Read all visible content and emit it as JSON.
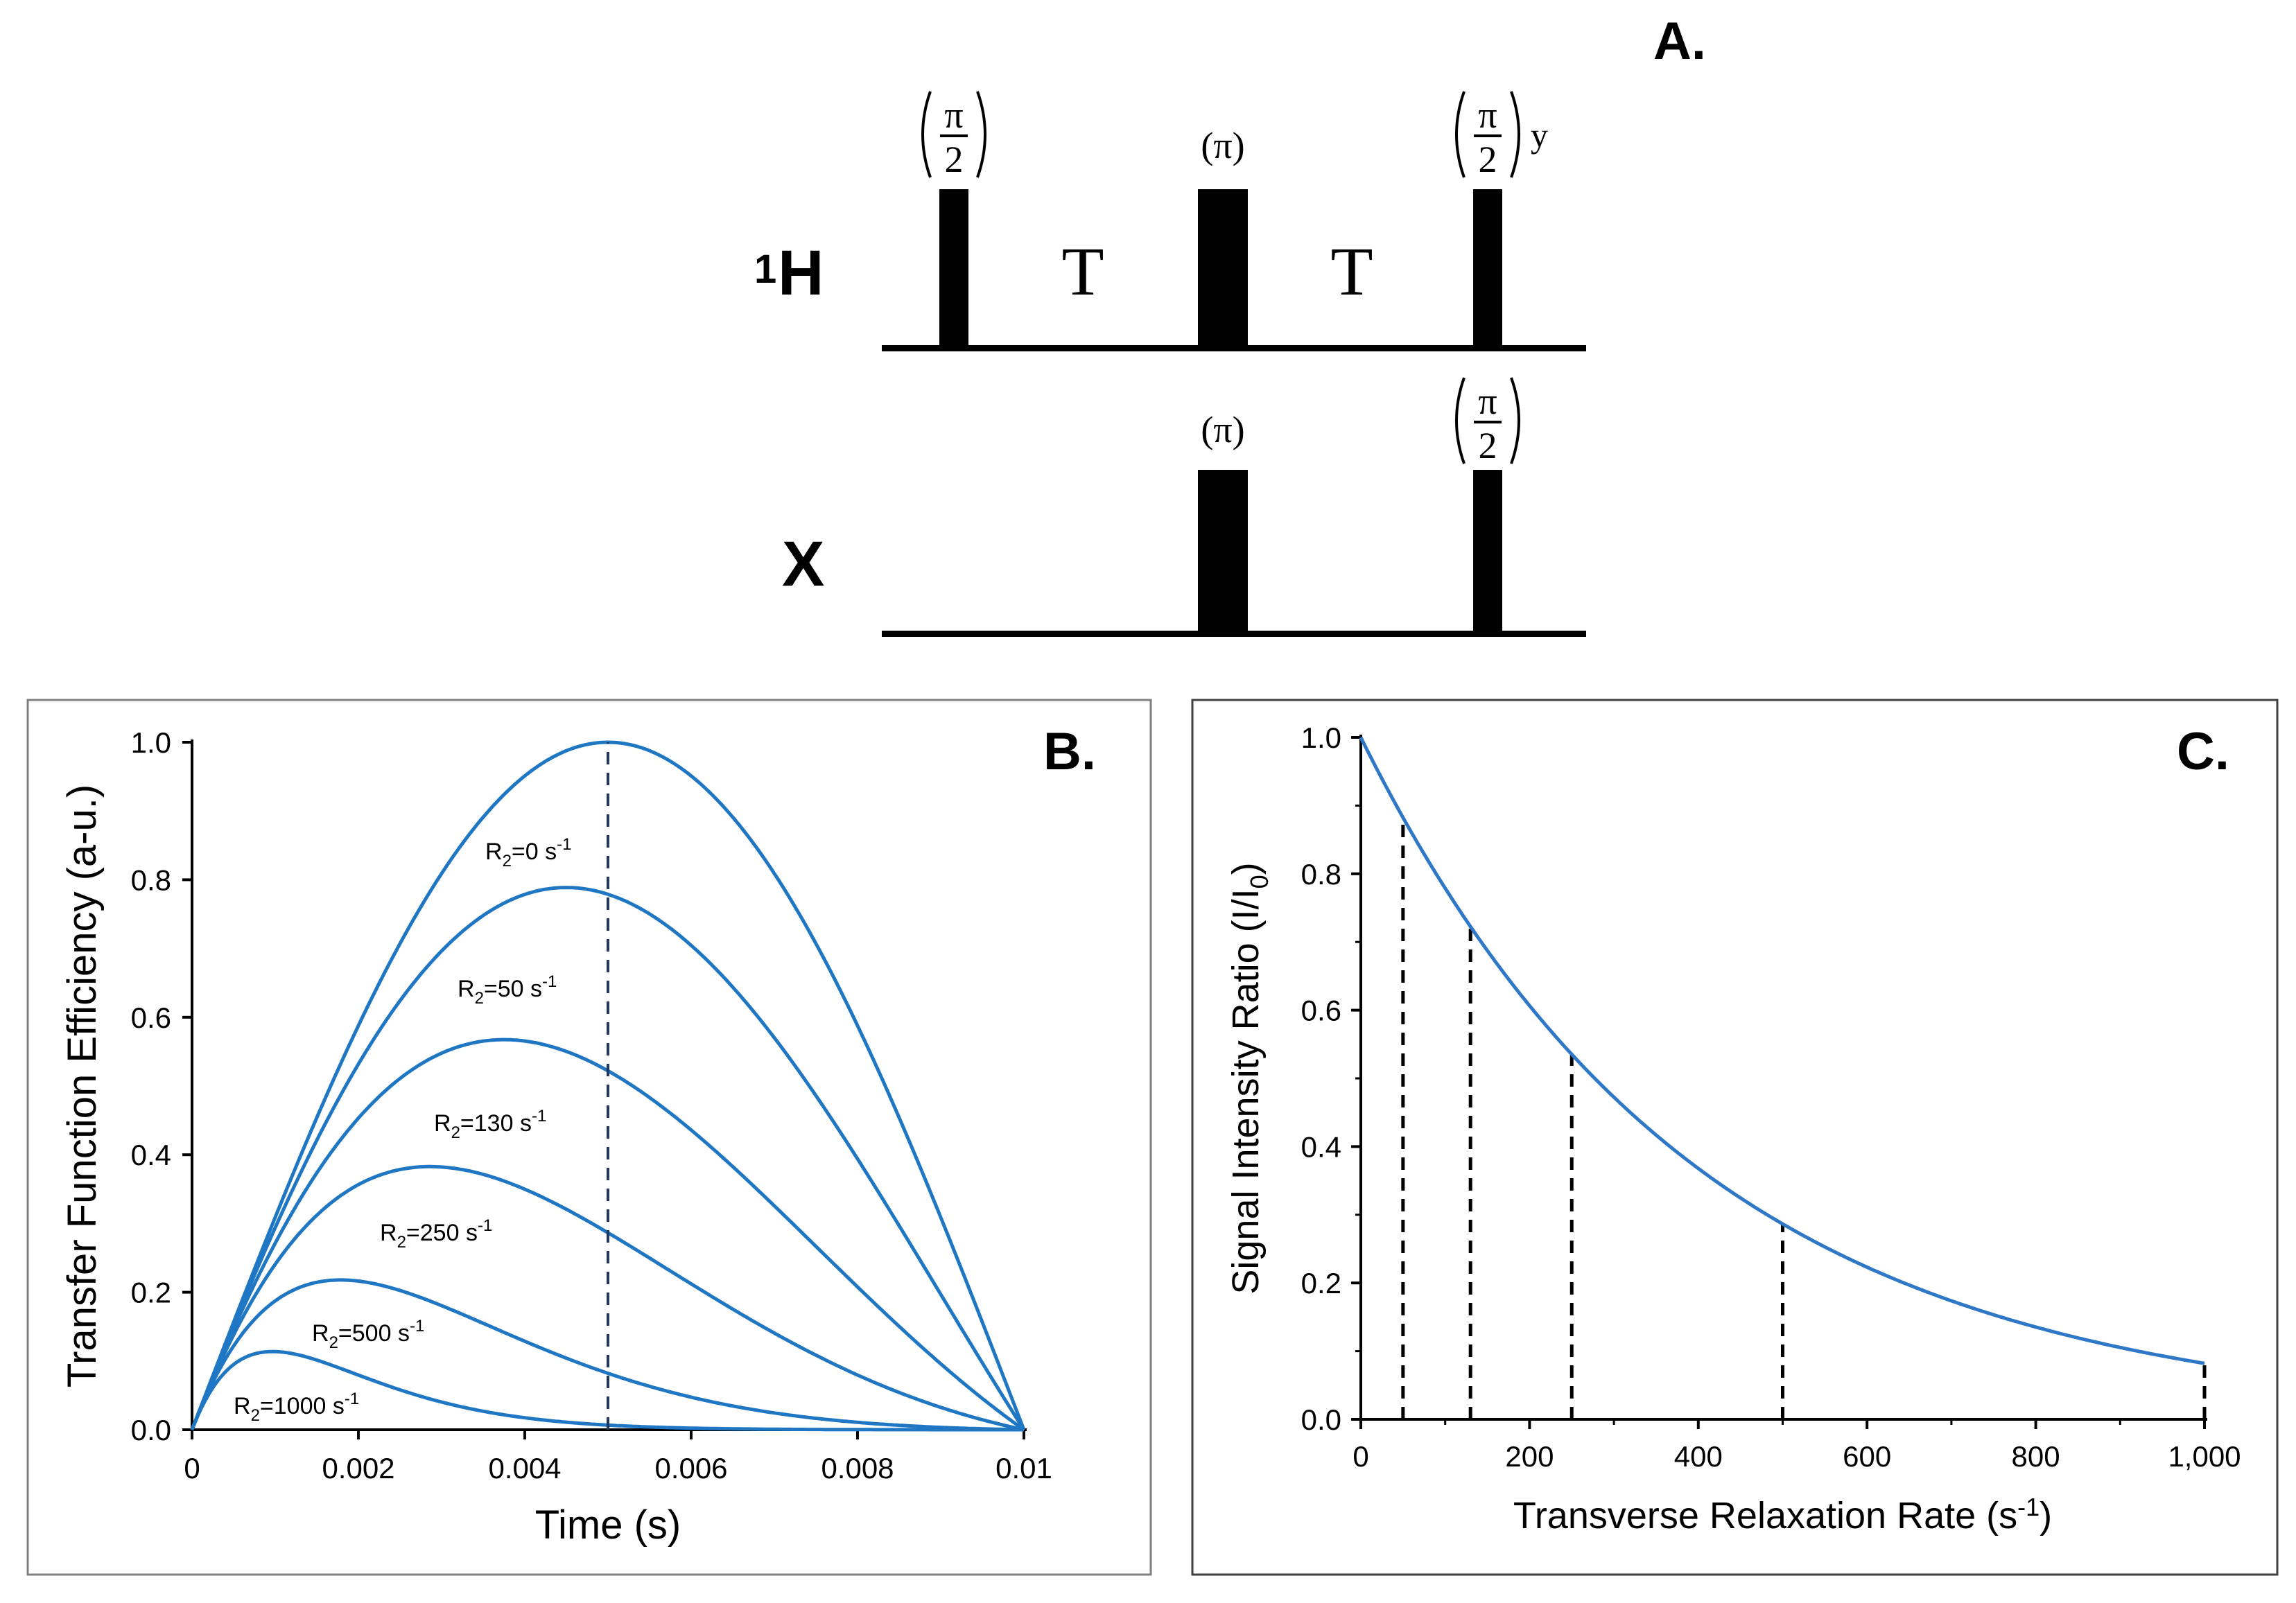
{
  "panel_a": {
    "label": "A.",
    "channel_h": {
      "superscript": "1",
      "name": "H"
    },
    "channel_x": {
      "name": "X"
    },
    "delay_label": "T",
    "pulse_labels": {
      "pi_open": "(π)",
      "pi_over_2_numerator": "π",
      "pi_over_2_denominator": "2",
      "phase_y": "y"
    }
  },
  "chart_data": [
    {
      "type": "line",
      "panel_label": "B.",
      "xlabel": "Time (s)",
      "ylabel": "Transfer Function Efficiency (a-u.)",
      "xlim": [
        0,
        0.01
      ],
      "ylim": [
        0,
        1.0
      ],
      "x_ticks": [
        "0",
        "0.002",
        "0.004",
        "0.006",
        "0.008",
        "0.01"
      ],
      "x_tick_values": [
        0,
        0.002,
        0.004,
        0.006,
        0.008,
        0.01
      ],
      "y_ticks": [
        "0.0",
        "0.2",
        "0.4",
        "0.6",
        "0.8",
        "1.0"
      ],
      "y_tick_values": [
        0,
        0.2,
        0.4,
        0.6,
        0.8,
        1.0
      ],
      "model": "sin(pi * t / 0.01) * exp(-R2 * t)",
      "series": [
        {
          "name": "R2=0 s-1",
          "label_main": "R",
          "label_sub": "2",
          "label_rest": "=0 s",
          "label_sup": "-1",
          "r2": 0
        },
        {
          "name": "R2=50 s-1",
          "label_main": "R",
          "label_sub": "2",
          "label_rest": "=50 s",
          "label_sup": "-1",
          "r2": 50
        },
        {
          "name": "R2=130 s-1",
          "label_main": "R",
          "label_sub": "2",
          "label_rest": "=130 s",
          "label_sup": "-1",
          "r2": 130
        },
        {
          "name": "R2=250 s-1",
          "label_main": "R",
          "label_sub": "2",
          "label_rest": "=250 s",
          "label_sup": "-1",
          "r2": 250
        },
        {
          "name": "R2=500 s-1",
          "label_main": "R",
          "label_sub": "2",
          "label_rest": "=500 s",
          "label_sup": "-1",
          "r2": 500
        },
        {
          "name": "R2=1000 s-1",
          "label_main": "R",
          "label_sub": "2",
          "label_rest": "=1000 s",
          "label_sup": "-1",
          "r2": 1000
        }
      ],
      "reference_line": {
        "x": 0.005,
        "style": "dashed"
      },
      "line_color": "#1f77c4",
      "dash_color": "#1f3864",
      "grid": false
    },
    {
      "type": "line",
      "panel_label": "C.",
      "xlabel_main": "Transverse Relaxation Rate (s",
      "xlabel_sup": "-1",
      "xlabel_close": ")",
      "ylabel_main": "Signal Intensity Ratio (I/I",
      "ylabel_sub": "0",
      "ylabel_close": ")",
      "xlim": [
        0,
        1000
      ],
      "ylim": [
        0,
        1.0
      ],
      "x_ticks": [
        "0",
        "200",
        "400",
        "600",
        "800",
        "1,000"
      ],
      "x_tick_values": [
        0,
        200,
        400,
        600,
        800,
        1000
      ],
      "y_ticks": [
        "0.0",
        "0.2",
        "0.4",
        "0.6",
        "0.8",
        "1.0"
      ],
      "y_tick_values": [
        0,
        0.2,
        0.4,
        0.6,
        0.8,
        1.0
      ],
      "model": "exp(-R2 * 0.0025)",
      "reference_lines_x": [
        50,
        130,
        250,
        500,
        1000
      ],
      "line_color": "#2e78c7",
      "dash_color": "#000000",
      "grid": false
    }
  ]
}
